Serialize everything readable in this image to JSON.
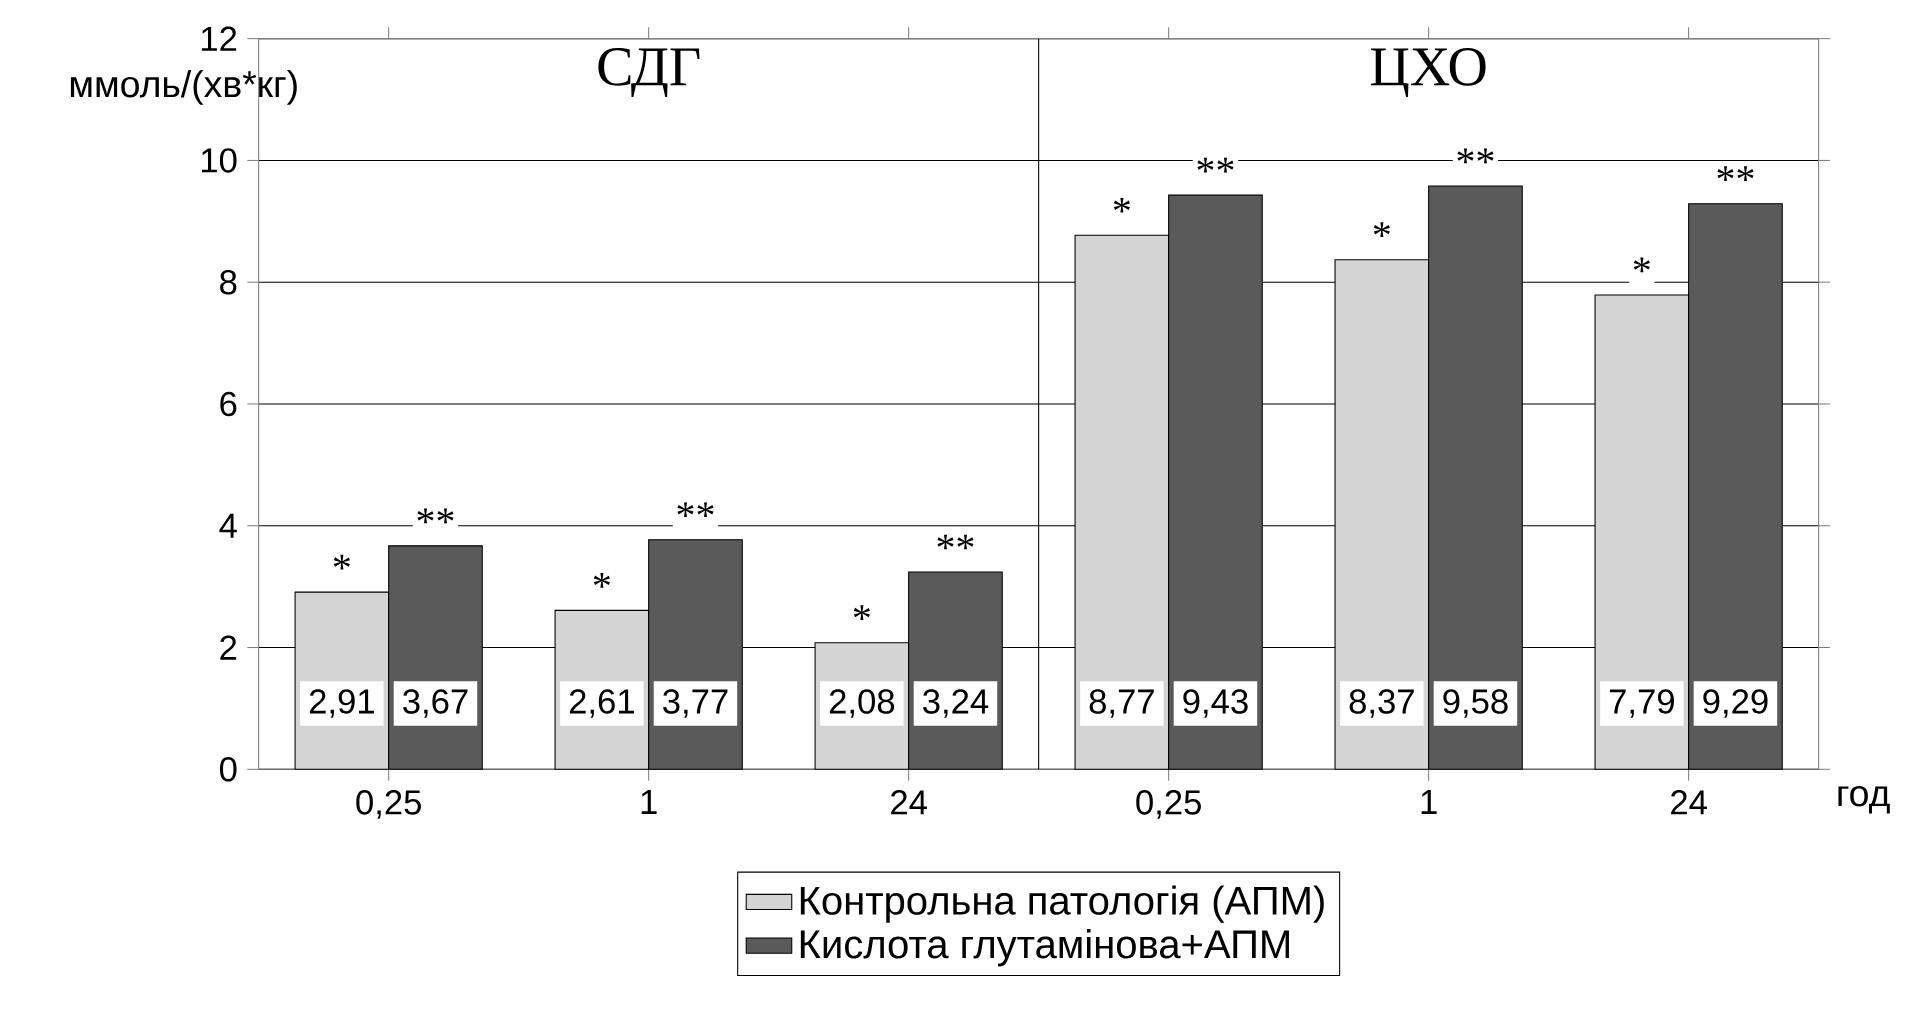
{
  "chart_data": {
    "type": "bar",
    "ylabel": "ммоль/(хв*кг)",
    "xlabel": "год",
    "categories": [
      "0,25",
      "1",
      "24",
      "0,25",
      "1",
      "24"
    ],
    "series": [
      {
        "name": "Контрольна патологія (АПМ)",
        "color": "#d4d4d4",
        "values": [
          2.91,
          2.61,
          2.08,
          8.77,
          8.37,
          7.79
        ],
        "value_labels": [
          "2,91",
          "2,61",
          "2,08",
          "8,77",
          "8,37",
          "7,79"
        ]
      },
      {
        "name": "Кислота глутамінова+АПМ",
        "color": "#5a5a5a",
        "values": [
          3.67,
          3.77,
          3.24,
          9.43,
          9.58,
          9.29
        ],
        "value_labels": [
          "3,67",
          "3,77",
          "3,24",
          "9,43",
          "9,58",
          "9,29"
        ]
      }
    ],
    "annotations": [
      "*",
      "**",
      "СДГ",
      "ЦХО"
    ],
    "ylim": [
      0,
      12
    ],
    "yticks": [
      0,
      2,
      4,
      6,
      8,
      10,
      12
    ],
    "grid": "y",
    "legend": "bottom"
  }
}
